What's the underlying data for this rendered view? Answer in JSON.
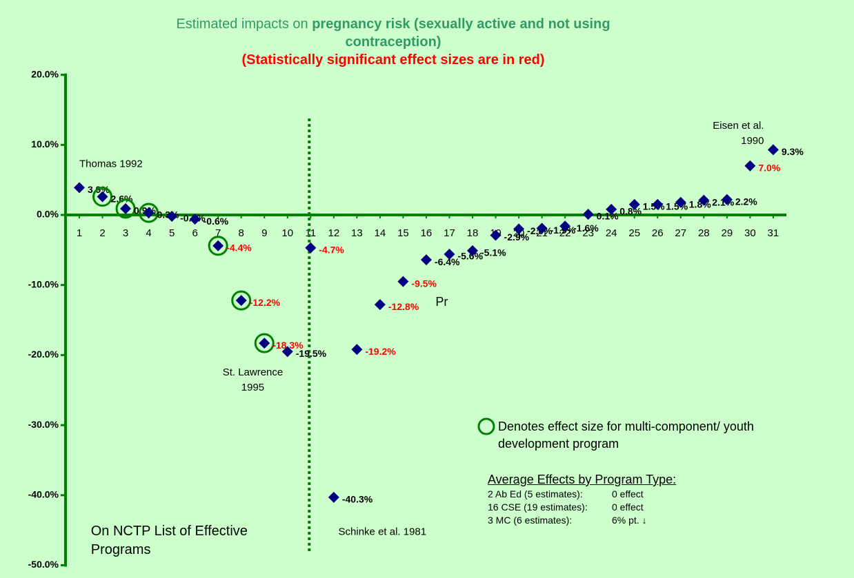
{
  "chart_data": {
    "type": "scatter",
    "title_prefix": "Estimated impacts on ",
    "title_bold": "pregnancy risk (sexually active and not using contraception)",
    "subtitle": "(Statistically significant effect sizes are in red)",
    "x": [
      1,
      2,
      3,
      4,
      5,
      6,
      7,
      8,
      9,
      10,
      11,
      12,
      13,
      14,
      15,
      16,
      17,
      18,
      19,
      20,
      21,
      22,
      23,
      24,
      25,
      26,
      27,
      28,
      29,
      30,
      31
    ],
    "xlim": [
      0.4,
      31.6
    ],
    "xticks": [
      1,
      2,
      3,
      4,
      5,
      6,
      7,
      8,
      9,
      10,
      11,
      12,
      13,
      14,
      15,
      16,
      17,
      18,
      19,
      20,
      21,
      22,
      23,
      24,
      25,
      26,
      27,
      28,
      29,
      30,
      31
    ],
    "values": [
      3.9,
      2.6,
      0.9,
      0.3,
      -0.2,
      -0.6,
      -4.4,
      -12.2,
      -18.3,
      -19.5,
      -4.7,
      -40.3,
      -19.2,
      -12.8,
      -9.5,
      -6.4,
      -5.6,
      -5.1,
      -2.9,
      -2.0,
      -1.9,
      -1.6,
      0.1,
      0.8,
      1.5,
      1.5,
      1.8,
      2.1,
      2.2,
      7.0,
      9.3
    ],
    "value_labels": [
      "3.9%",
      "2.6%",
      "0.9%",
      "0.3%",
      "-0.2%",
      "-0.6%",
      "-4.4%",
      "-12.2%",
      "-18.3%",
      "-19.5%",
      "-4.7%",
      "-40.3%",
      "-19.2%",
      "-12.8%",
      "-9.5%",
      "-6.4%",
      "-5.6%",
      "-5.1%",
      "-2.9%",
      "-2.0%",
      "-1.9%",
      "-1.6%",
      "0.1%",
      "0.8%",
      "1.5%",
      "1.5%",
      "1.8%",
      "2.1%",
      "2.2%",
      "7.0%",
      "9.3%"
    ],
    "significant": [
      false,
      false,
      false,
      false,
      false,
      false,
      true,
      true,
      true,
      false,
      true,
      false,
      true,
      true,
      true,
      false,
      false,
      false,
      false,
      false,
      false,
      false,
      false,
      false,
      false,
      false,
      false,
      false,
      false,
      true,
      false
    ],
    "multi_component": [
      false,
      true,
      true,
      true,
      false,
      false,
      true,
      true,
      true,
      false,
      false,
      false,
      false,
      false,
      false,
      false,
      false,
      false,
      false,
      false,
      false,
      false,
      false,
      false,
      false,
      false,
      false,
      false,
      false,
      false,
      false
    ],
    "color": "#000080",
    "significant_color": "#ff0000",
    "label_color": "#000000",
    "axis_color": "#008000",
    "ylim": [
      -50,
      20
    ],
    "yticks": [
      {
        "value": 20,
        "label": "20.0%"
      },
      {
        "value": 10,
        "label": "10.0%"
      },
      {
        "value": 0,
        "label": "0.0%"
      },
      {
        "value": -10,
        "label": "-10.0%"
      },
      {
        "value": -20,
        "label": "-20.0%"
      },
      {
        "value": -30,
        "label": "-30.0%"
      },
      {
        "value": -40,
        "label": "-40.0%"
      },
      {
        "value": -50,
        "label": "-50.0%"
      }
    ],
    "vline_x": 11,
    "annotations": [
      {
        "lines": [
          "Thomas 1992"
        ],
        "x": 1,
        "y": 7.2
      },
      {
        "lines": [
          "St. Lawrence",
          "1995"
        ],
        "x": 8.5,
        "y": -22.5
      },
      {
        "lines": [
          "Schinke et al. 1981"
        ],
        "x": 12.2,
        "y": -45.3
      },
      {
        "lines": [
          "Eisen et al.",
          "1990"
        ],
        "x": 30.6,
        "y": 12.7
      },
      {
        "lines": [
          "Pr"
        ],
        "x": 16.4,
        "y": -12.5
      },
      {
        "lines": [
          "On NCTP List of Effective",
          "Programs"
        ],
        "x": 1.5,
        "y": -45.2
      }
    ],
    "legend_text": "Denotes effect size for multi-component/ youth development program",
    "averages_title": "Average Effects by Program Type:",
    "averages": [
      [
        "2 Ab Ed (5 estimates):",
        "0 effect"
      ],
      [
        "16 CSE (19 estimates):",
        "0 effect"
      ],
      [
        "3 MC (6 estimates):",
        "6% pt. ↓"
      ]
    ]
  }
}
